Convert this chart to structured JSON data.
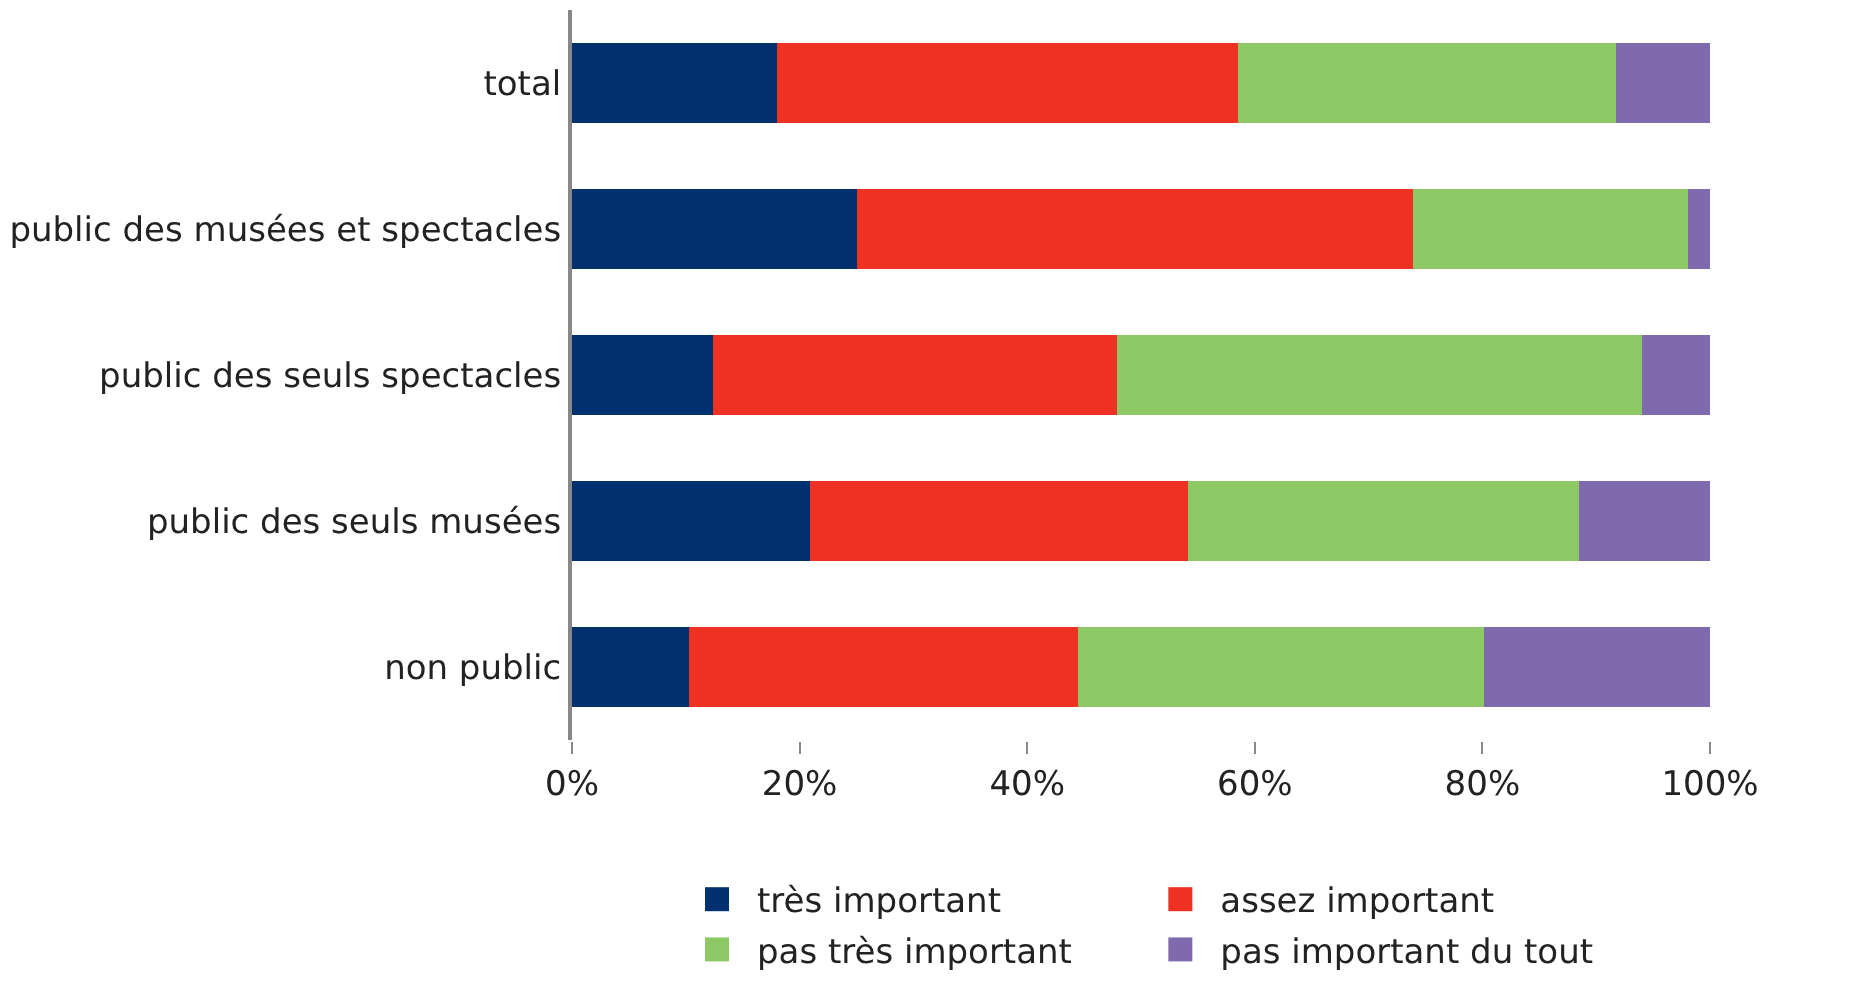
{
  "chart_data": {
    "type": "bar",
    "orientation": "horizontal",
    "stacked": true,
    "categories": [
      "total",
      "public des musées et spectacles",
      "public des seuls spectacles",
      "public des seuls musées",
      "non public"
    ],
    "series": [
      {
        "name": "très important",
        "color": "#003070",
        "values": [
          18,
          25,
          12.4,
          20.9,
          10.3
        ]
      },
      {
        "name": "assez important",
        "color": "#ef3124",
        "values": [
          40.5,
          48.9,
          35.5,
          33.2,
          34.2
        ]
      },
      {
        "name": "pas très important",
        "color": "#8cc864",
        "values": [
          33.2,
          24.2,
          46.1,
          34.4,
          35.6
        ]
      },
      {
        "name": "pas important du tout",
        "color": "#7f6aad",
        "values": [
          8.3,
          1.9,
          6,
          11.5,
          19.9
        ]
      }
    ],
    "xlim": [
      0,
      100
    ],
    "xticks": [
      {
        "value": 0,
        "label": "0%"
      },
      {
        "value": 20,
        "label": "20%"
      },
      {
        "value": 40,
        "label": "40%"
      },
      {
        "value": 60,
        "label": "60%"
      },
      {
        "value": 80,
        "label": "80%"
      },
      {
        "value": 100,
        "label": "100%"
      }
    ],
    "grid": false,
    "legend": "bottom"
  }
}
